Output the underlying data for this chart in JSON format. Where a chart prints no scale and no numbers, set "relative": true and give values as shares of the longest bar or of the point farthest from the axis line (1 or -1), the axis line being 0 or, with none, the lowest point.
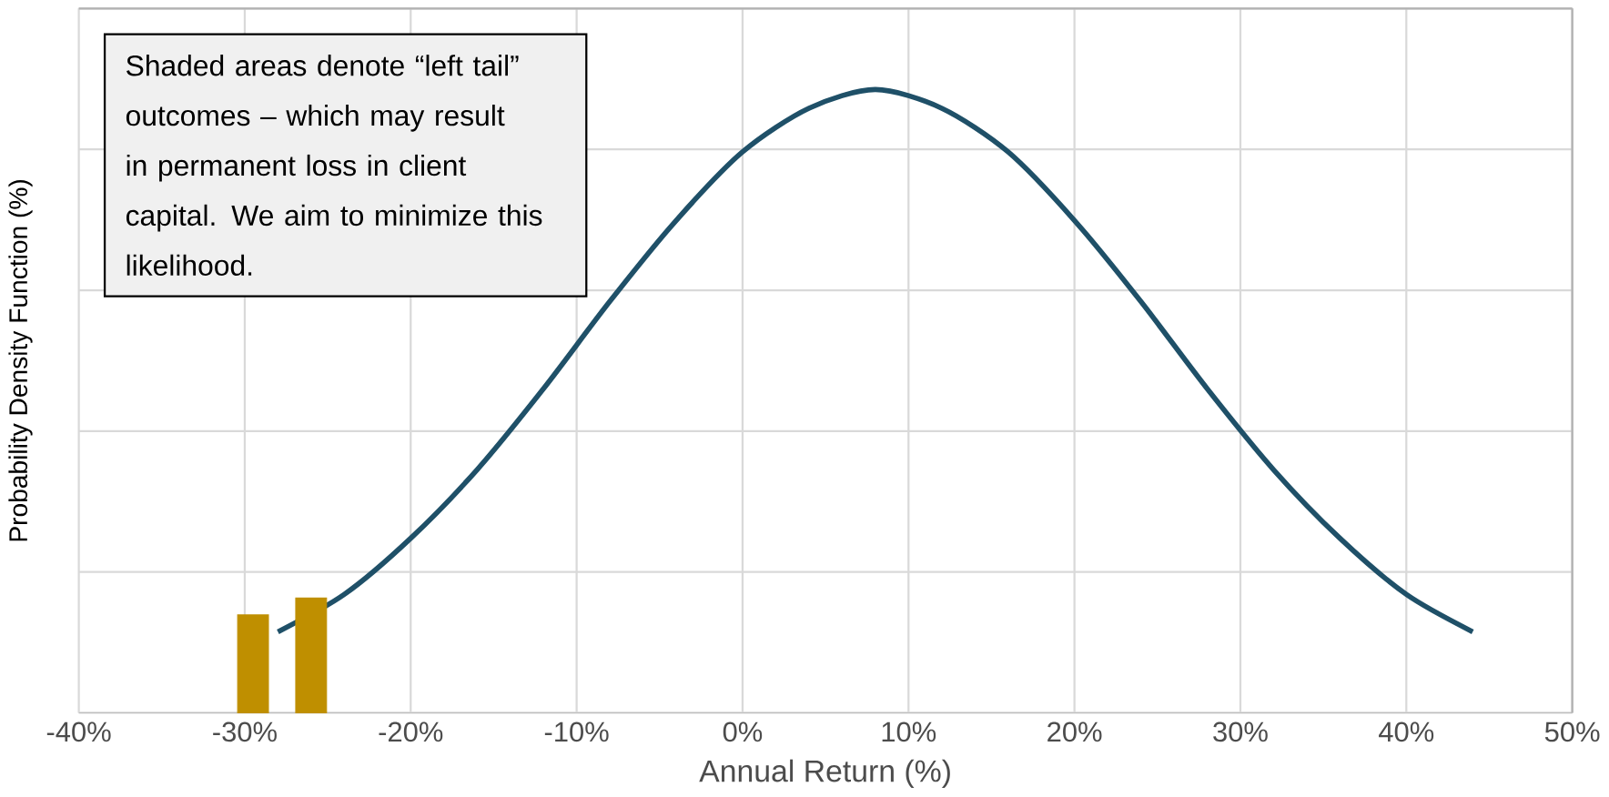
{
  "chart_data": {
    "type": "line",
    "relative": true,
    "xlabel": "Annual Return (%)",
    "ylabel": "Probability Density Function (%)",
    "xlim": [
      -40,
      50
    ],
    "xticks": [
      {
        "value": -40,
        "label": "-40%"
      },
      {
        "value": -30,
        "label": "-30%"
      },
      {
        "value": -20,
        "label": "-20%"
      },
      {
        "value": -10,
        "label": "-10%"
      },
      {
        "value": 0,
        "label": "0%"
      },
      {
        "value": 10,
        "label": "10%"
      },
      {
        "value": 20,
        "label": "20%"
      },
      {
        "value": 30,
        "label": "30%"
      },
      {
        "value": 40,
        "label": "40%"
      },
      {
        "value": 50,
        "label": "50%"
      }
    ],
    "grid": true,
    "marker": "none",
    "line_style": "solid",
    "series": [
      {
        "color": "#1f5068",
        "x": [
          -28,
          -24,
          -20,
          -16,
          -12,
          -8,
          -4,
          0,
          4,
          8,
          12,
          16,
          20,
          24,
          28,
          32,
          36,
          40,
          44
        ],
        "values": [
          0.13,
          0.19,
          0.28,
          0.39,
          0.52,
          0.66,
          0.79,
          0.9,
          0.97,
          1.0,
          0.97,
          0.9,
          0.79,
          0.66,
          0.52,
          0.39,
          0.28,
          0.19,
          0.13
        ]
      },
      {
        "type": "bar",
        "color": "#bf8f00",
        "x": [
          -29.5,
          -26.0
        ],
        "values": [
          0.157,
          0.184
        ]
      }
    ],
    "annotations": [
      "Shaded areas denote “left tail” outcomes – which may result in permanent loss in client capital. We aim to minimize this likelihood."
    ]
  }
}
